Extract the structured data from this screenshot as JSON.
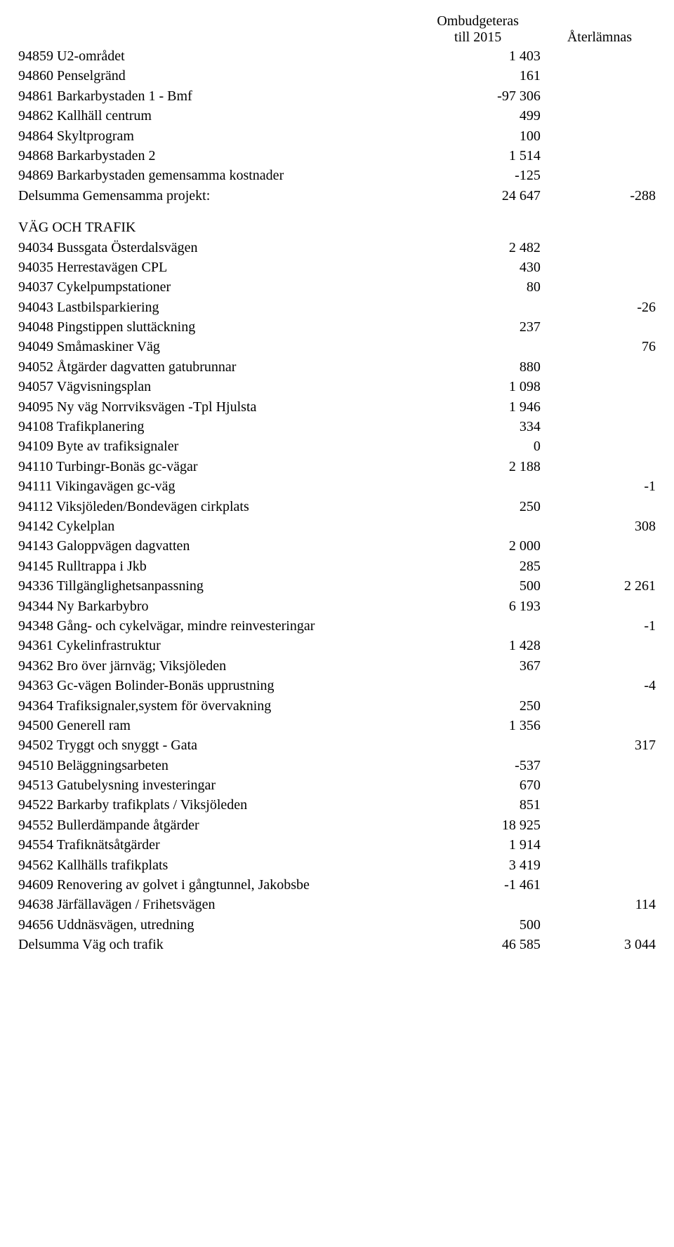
{
  "header": {
    "col1_line1": "Ombudgeteras",
    "col1_line2": "till 2015",
    "col2": "Återlämnas"
  },
  "rows": [
    {
      "label": "94859 U2-området",
      "v1": "1 403",
      "v2": ""
    },
    {
      "label": "94860 Penselgränd",
      "v1": "161",
      "v2": ""
    },
    {
      "label": "94861 Barkarbystaden  1 - Bmf",
      "v1": "-97 306",
      "v2": ""
    },
    {
      "label": "94862 Kallhäll centrum",
      "v1": "499",
      "v2": ""
    },
    {
      "label": "94864 Skyltprogram",
      "v1": "100",
      "v2": ""
    },
    {
      "label": "94868 Barkarbystaden 2",
      "v1": "1 514",
      "v2": ""
    },
    {
      "label": "94869 Barkarbystaden gemensamma kostnader",
      "v1": "-125",
      "v2": ""
    },
    {
      "label": "Delsumma Gemensamma projekt:",
      "v1": "24 647",
      "v2": "-288"
    },
    {
      "section": true,
      "label": "VÄG OCH TRAFIK",
      "v1": "",
      "v2": ""
    },
    {
      "label": "94034 Bussgata Österdalsvägen",
      "v1": "2 482",
      "v2": ""
    },
    {
      "label": "94035 Herrestavägen CPL",
      "v1": "430",
      "v2": ""
    },
    {
      "label": "94037 Cykelpumpstationer",
      "v1": "80",
      "v2": ""
    },
    {
      "label": "94043 Lastbilsparkiering",
      "v1": "",
      "v2": "-26"
    },
    {
      "label": "94048 Pingstippen sluttäckning",
      "v1": "237",
      "v2": ""
    },
    {
      "label": "94049 Småmaskiner Väg",
      "v1": "",
      "v2": "76"
    },
    {
      "label": "94052 Åtgärder dagvatten gatubrunnar",
      "v1": "880",
      "v2": ""
    },
    {
      "label": "94057 Vägvisningsplan",
      "v1": "1 098",
      "v2": ""
    },
    {
      "label": "94095 Ny väg Norrviksvägen -Tpl Hjulsta",
      "v1": "1 946",
      "v2": ""
    },
    {
      "label": "94108 Trafikplanering",
      "v1": "334",
      "v2": ""
    },
    {
      "label": "94109 Byte av trafiksignaler",
      "v1": "0",
      "v2": ""
    },
    {
      "label": "94110 Turbingr-Bonäs gc-vägar",
      "v1": "2 188",
      "v2": ""
    },
    {
      "label": "94111 Vikingavägen gc-väg",
      "v1": "",
      "v2": "-1"
    },
    {
      "label": "94112 Viksjöleden/Bondevägen cirkplats",
      "v1": "250",
      "v2": ""
    },
    {
      "label": "94142  Cykelplan",
      "v1": "",
      "v2": "308"
    },
    {
      "label": "94143 Galoppvägen dagvatten",
      "v1": "2 000",
      "v2": ""
    },
    {
      "label": "94145 Rulltrappa i Jkb",
      "v1": "285",
      "v2": ""
    },
    {
      "label": "94336 Tillgänglighetsanpassning",
      "v1": "500",
      "v2": "2 261"
    },
    {
      "label": "94344 Ny Barkarbybro",
      "v1": "6 193",
      "v2": ""
    },
    {
      "label": "94348 Gång- och cykelvägar, mindre reinvesteringar",
      "v1": "",
      "v2": "-1"
    },
    {
      "label": "94361 Cykelinfrastruktur",
      "v1": "1 428",
      "v2": ""
    },
    {
      "label": "94362 Bro över järnväg; Viksjöleden",
      "v1": "367",
      "v2": ""
    },
    {
      "label": "94363 Gc-vägen Bolinder-Bonäs upprustning",
      "v1": "",
      "v2": "-4"
    },
    {
      "label": "94364 Trafiksignaler,system för övervakning",
      "v1": "250",
      "v2": ""
    },
    {
      "label": "94500 Generell ram",
      "v1": "1 356",
      "v2": ""
    },
    {
      "label": "94502 Tryggt och snyggt - Gata",
      "v1": "",
      "v2": "317"
    },
    {
      "label": "94510 Beläggningsarbeten",
      "v1": "-537",
      "v2": ""
    },
    {
      "label": "94513 Gatubelysning investeringar",
      "v1": "670",
      "v2": ""
    },
    {
      "label": "94522 Barkarby trafikplats / Viksjöleden",
      "v1": "851",
      "v2": ""
    },
    {
      "label": "94552 Bullerdämpande åtgärder",
      "v1": "18 925",
      "v2": ""
    },
    {
      "label": "94554 Trafiknätsåtgärder",
      "v1": "1 914",
      "v2": ""
    },
    {
      "label": "94562 Kallhälls trafikplats",
      "v1": "3 419",
      "v2": ""
    },
    {
      "label": "94609 Renovering av golvet i gångtunnel, Jakobsbe",
      "v1": "-1 461",
      "v2": ""
    },
    {
      "label": "94638 Järfällavägen / Frihetsvägen",
      "v1": "",
      "v2": "114"
    },
    {
      "label": "94656 Uddnäsvägen, utredning",
      "v1": "500",
      "v2": ""
    },
    {
      "label": "Delsumma Väg och trafik",
      "v1": "46 585",
      "v2": "3 044"
    }
  ]
}
